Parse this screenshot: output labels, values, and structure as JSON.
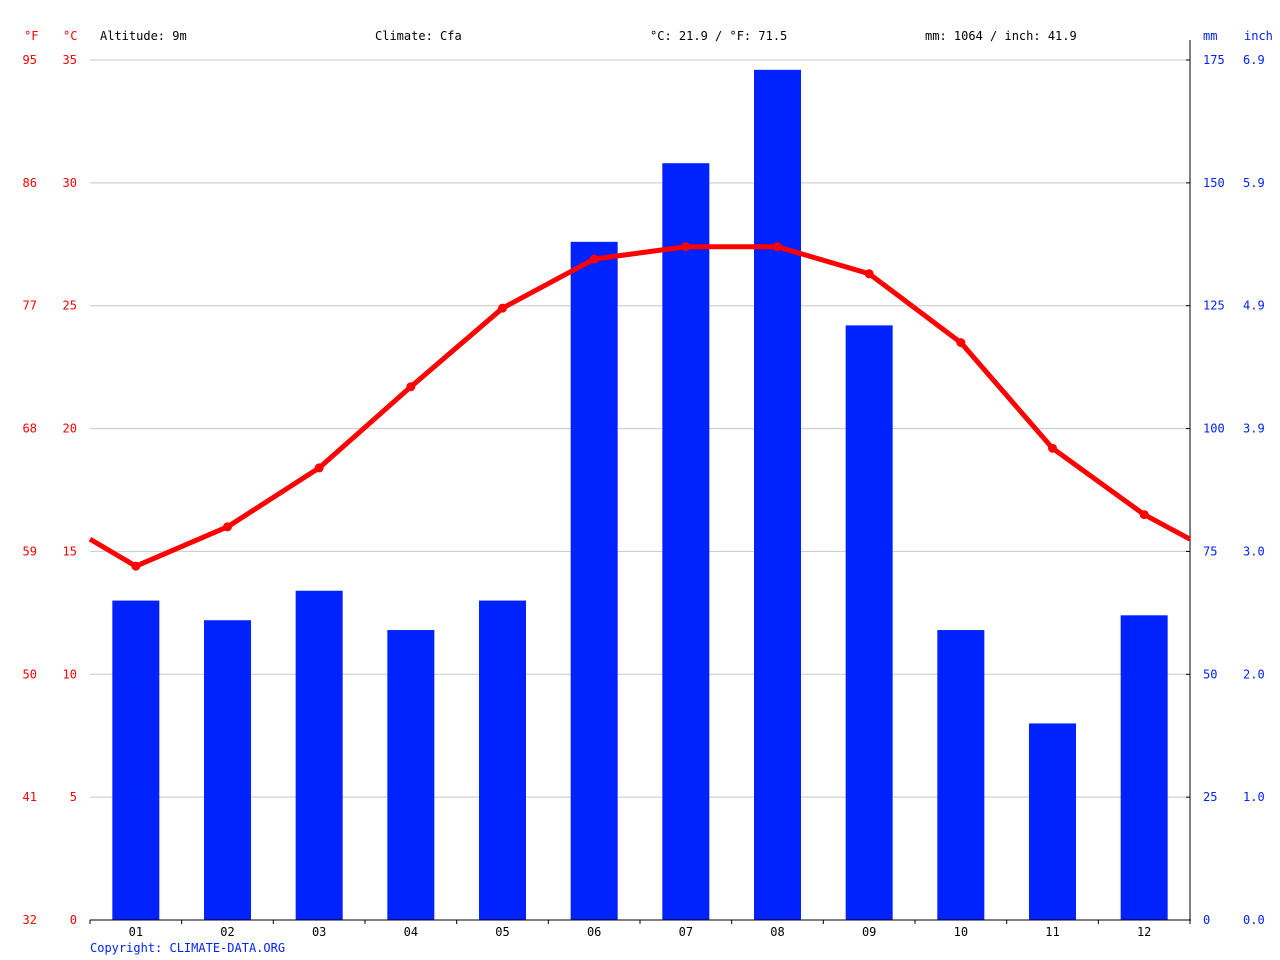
{
  "header": {
    "altitude": "Altitude: 9m",
    "climate": "Climate: Cfa",
    "temp_avg": "°C: 21.9 / °F: 71.5",
    "precip_total": "mm: 1064 / inch: 41.9",
    "unit_f": "°F",
    "unit_c": "°C",
    "unit_mm": "mm",
    "unit_inch": "inch"
  },
  "footer": {
    "copyright": "Copyright: CLIMATE-DATA.ORG"
  },
  "colors": {
    "temperature": "#ff0000",
    "precipitation": "#0022ff",
    "grid": "#c8c8c8"
  },
  "chart_data": {
    "type": "bar",
    "categories": [
      "01",
      "02",
      "03",
      "04",
      "05",
      "06",
      "07",
      "08",
      "09",
      "10",
      "11",
      "12"
    ],
    "series": [
      {
        "values": [
          65,
          61,
          67,
          59,
          65,
          138,
          154,
          173,
          121,
          59,
          40,
          62
        ]
      },
      {
        "type": "line",
        "values": [
          14.4,
          16.0,
          18.4,
          21.7,
          24.9,
          26.9,
          27.4,
          27.4,
          26.3,
          23.5,
          19.2,
          16.5
        ]
      }
    ],
    "temp_edge_values": {
      "left": 15.5,
      "right": 15.5
    },
    "y_left_c_ticks": [
      "0",
      "5",
      "10",
      "15",
      "20",
      "25",
      "30",
      "35"
    ],
    "y_left_f_ticks": [
      "32",
      "41",
      "50",
      "59",
      "68",
      "77",
      "86",
      "95"
    ],
    "y_right_mm_ticks": [
      "0",
      "25",
      "50",
      "75",
      "100",
      "125",
      "150",
      "175"
    ],
    "y_right_inch_ticks": [
      "0.0",
      "1.0",
      "2.0",
      "3.0",
      "3.9",
      "4.9",
      "5.9",
      "6.9"
    ],
    "ylim_c": [
      0,
      35
    ],
    "ylim_mm": [
      0,
      175
    ],
    "grid": true
  }
}
